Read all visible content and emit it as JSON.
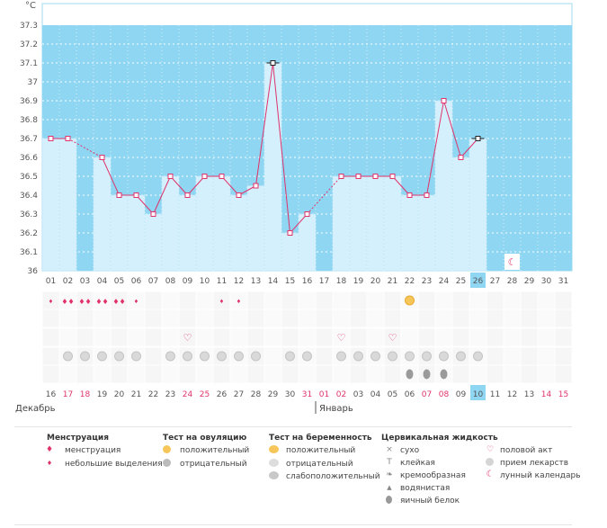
{
  "chart_data": {
    "type": "bar",
    "unit_label": "°C",
    "ylim": [
      36,
      37.3
    ],
    "y_ticks": [
      "37.3",
      "37.2",
      "37.1",
      "37",
      "36.9",
      "36.8",
      "36.7",
      "36.6",
      "36.5",
      "36.4",
      "36.3",
      "36.2",
      "36.1",
      "36"
    ],
    "cycle_days": [
      "01",
      "02",
      "03",
      "04",
      "05",
      "06",
      "07",
      "08",
      "09",
      "10",
      "11",
      "12",
      "13",
      "14",
      "15",
      "16",
      "17",
      "18",
      "19",
      "20",
      "21",
      "22",
      "23",
      "24",
      "25",
      "26",
      "27",
      "28",
      "29",
      "30",
      "31"
    ],
    "current_day_index": 25,
    "temperatures": [
      36.7,
      36.7,
      null,
      36.6,
      36.4,
      36.4,
      36.3,
      36.5,
      36.4,
      36.5,
      36.5,
      36.4,
      36.45,
      37.1,
      36.2,
      36.3,
      null,
      36.5,
      36.5,
      36.5,
      36.5,
      36.4,
      36.4,
      36.9,
      36.6,
      36.7,
      null,
      null,
      null,
      null,
      null
    ],
    "dashed_gaps": [
      [
        1,
        3
      ],
      [
        15,
        17
      ]
    ],
    "black_markers": [
      13,
      25
    ],
    "dates": [
      "16",
      "17",
      "18",
      "19",
      "20",
      "21",
      "22",
      "23",
      "24",
      "25",
      "26",
      "27",
      "28",
      "29",
      "30",
      "31",
      "01",
      "02",
      "03",
      "04",
      "05",
      "06",
      "07",
      "08",
      "09",
      "10",
      "11",
      "12",
      "13",
      "14",
      "15"
    ],
    "red_date_indices": [
      1,
      2,
      8,
      9,
      15,
      16,
      17,
      22,
      23,
      29,
      30
    ],
    "today_date_index": 25,
    "months": [
      {
        "label": "Декабрь",
        "start_index": 0
      },
      {
        "label": "Январь",
        "start_index": 16
      }
    ],
    "menstruation_heavy": [
      1,
      2,
      3,
      4
    ],
    "menstruation_light": [
      0,
      5,
      10,
      11
    ],
    "ovulation_positive": [
      21
    ],
    "intercourse": [
      8,
      17,
      20
    ],
    "medication": [
      1,
      2,
      3,
      4,
      5,
      7,
      8,
      9,
      10,
      11,
      12,
      14,
      15,
      17,
      18,
      19,
      20,
      21,
      22,
      23,
      24,
      25
    ],
    "egg_white": [
      21,
      22,
      23
    ],
    "moon": [
      27
    ]
  },
  "legend": {
    "menstruation": {
      "title": "Менструация",
      "items": [
        "менструация",
        "небольшие выделения"
      ]
    },
    "ovulation_test": {
      "title": "Тест на овуляцию",
      "items": [
        "положительный",
        "отрицательный"
      ]
    },
    "pregnancy_test": {
      "title": "Тест на беременность",
      "items": [
        "положительный",
        "отрицательный",
        "слабоположительный"
      ]
    },
    "cervical": {
      "title": "Цервикальная жидкость",
      "items": [
        "сухо",
        "клейкая",
        "кремообразная",
        "водянистая",
        "яичный белок"
      ]
    },
    "other": {
      "items": [
        "половой акт",
        "прием лекарств",
        "лунный календарь"
      ]
    }
  },
  "colors": {
    "sky": "#8fd6f3",
    "bar": "#d4f0fd",
    "line": "#e0336a",
    "current": "#8fd6f3",
    "red_text": "#e0336a"
  }
}
